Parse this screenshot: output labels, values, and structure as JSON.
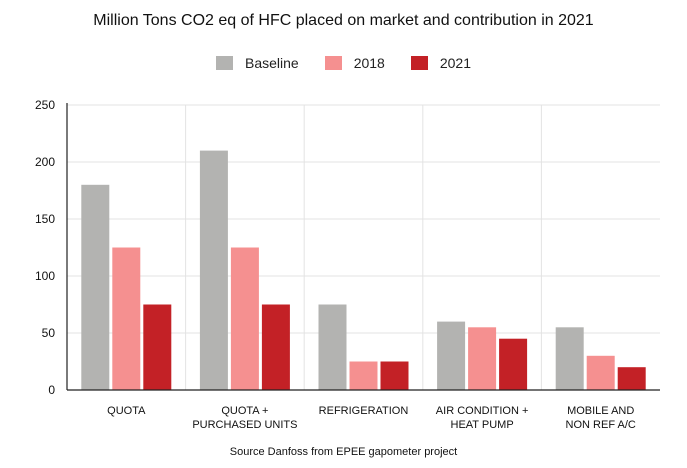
{
  "chart_data": {
    "type": "bar",
    "title": "Million Tons CO2 eq of HFC placed on market and contribution in 2021",
    "source": "Source Danfoss from EPEE gapometer project",
    "categories": [
      [
        "QUOTA"
      ],
      [
        "QUOTA +",
        "PURCHASED UNITS"
      ],
      [
        "REFRIGERATION"
      ],
      [
        "AIR CONDITION +",
        "HEAT PUMP"
      ],
      [
        "MOBILE AND",
        "NON REF A/C"
      ]
    ],
    "series": [
      {
        "name": "Baseline",
        "color": "#b3b3b1",
        "values": [
          180,
          210,
          75,
          60,
          55
        ]
      },
      {
        "name": "2018",
        "color": "#f59090",
        "values": [
          125,
          125,
          25,
          55,
          30
        ]
      },
      {
        "name": "2021",
        "color": "#c32126",
        "values": [
          75,
          75,
          25,
          45,
          20
        ]
      }
    ],
    "ylim": [
      0,
      250
    ],
    "yticks": [
      "0",
      "50",
      "100",
      "150",
      "200",
      "250"
    ],
    "grid": true,
    "legend_position": "top-center"
  }
}
